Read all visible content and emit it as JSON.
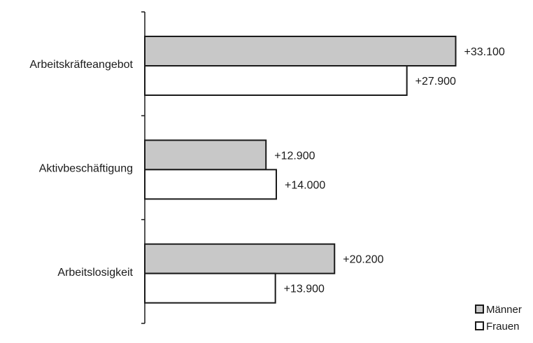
{
  "chart_data": {
    "type": "bar",
    "orientation": "horizontal",
    "categories": [
      "Arbeitskräfteangebot",
      "Aktivbeschäftigung",
      "Arbeitslosigkeit"
    ],
    "series": [
      {
        "name": "Männer",
        "color": "#c8c8c8",
        "values": [
          33100,
          12900,
          20200
        ],
        "labels": [
          "+33.100",
          "+12.900",
          "+20.200"
        ]
      },
      {
        "name": "Frauen",
        "color": "#ffffff",
        "values": [
          27900,
          14000,
          13900
        ],
        "labels": [
          "+27.900",
          "+14.000",
          "+13.900"
        ]
      }
    ],
    "title": "",
    "xlabel": "",
    "ylabel": "",
    "xlim": [
      0,
      35000
    ],
    "grid": false,
    "legend_position": "bottom-right"
  }
}
